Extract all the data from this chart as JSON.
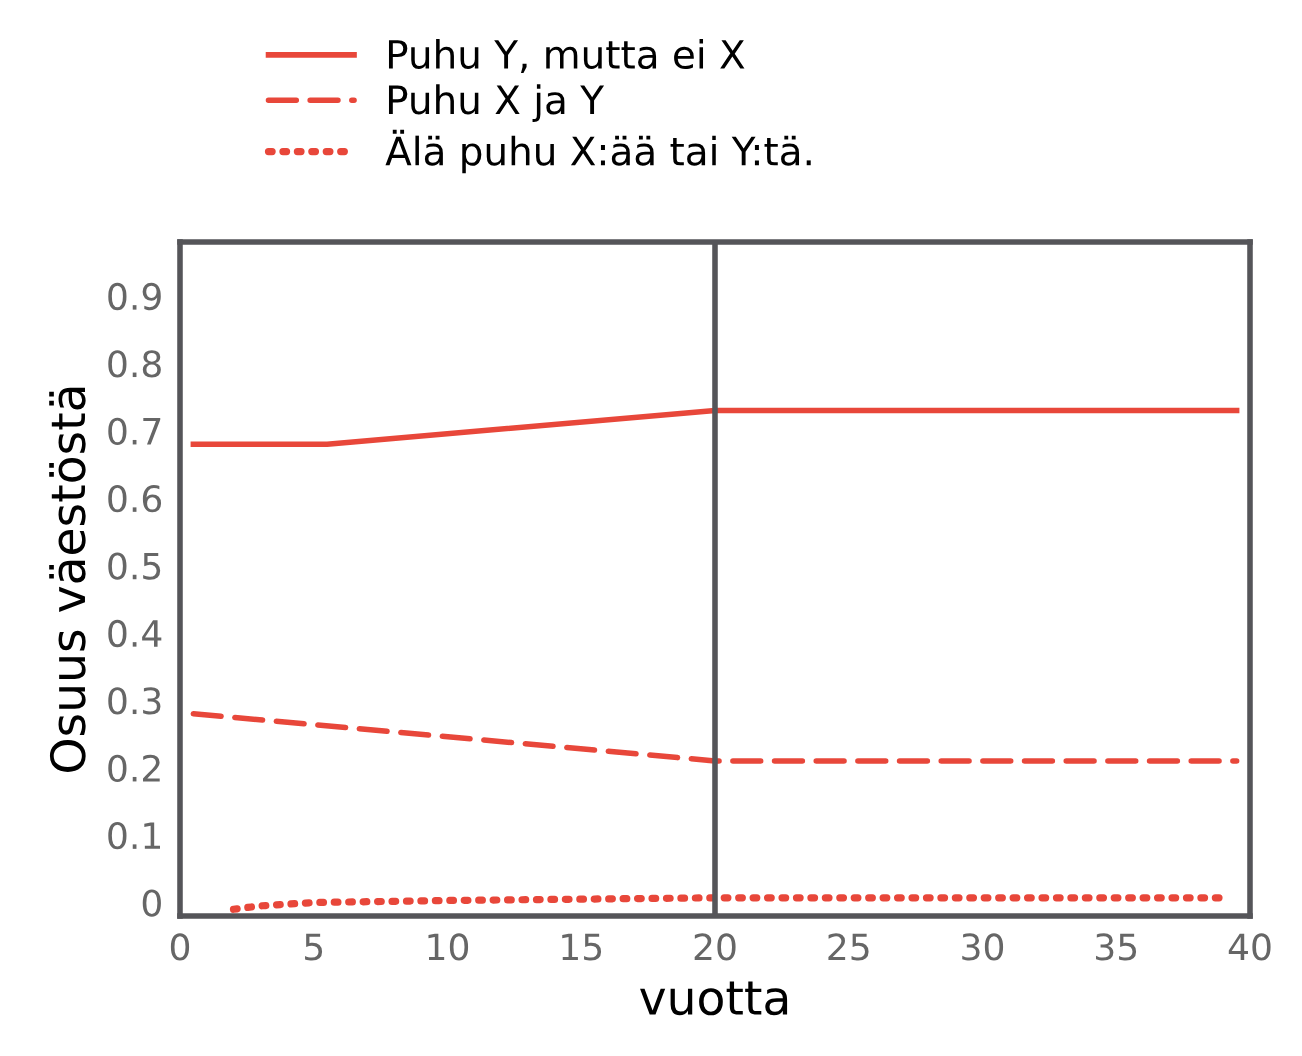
{
  "chart_data": {
    "type": "line",
    "xlabel": "vuotta",
    "ylabel": "Osuus väestöstä",
    "xlim": [
      0,
      40
    ],
    "xticks": [
      0,
      5,
      10,
      15,
      20,
      25,
      30,
      35,
      40
    ],
    "ylim": [
      -0.02,
      0.98
    ],
    "yticks": [
      0,
      0.1,
      0.2,
      0.3,
      0.4,
      0.5,
      0.6,
      0.7,
      0.8,
      0.9
    ],
    "grid": false,
    "legend": "top left",
    "ref_lines": [
      {
        "axis": "x",
        "value": 20,
        "color": "#555559"
      }
    ],
    "series": [
      {
        "name": "Puhu Y, mutta ei X",
        "color": "#e8473a",
        "line_style": "solid",
        "x": [
          0.5,
          5.5,
          20,
          39.5
        ],
        "values": [
          0.68,
          0.68,
          0.73,
          0.73
        ]
      },
      {
        "name": "Puhu X ja Y",
        "color": "#e8473a",
        "line_style": "dashed",
        "x": [
          0.5,
          20,
          39.5
        ],
        "values": [
          0.28,
          0.21,
          0.21
        ]
      },
      {
        "name": "Älä puhu X:ää tai Y:tä.",
        "color": "#e8473a",
        "line_style": "dotted",
        "x": [
          2,
          3,
          5,
          10,
          20,
          39
        ],
        "values": [
          -0.01,
          -0.005,
          0.0,
          0.003,
          0.007,
          0.007
        ]
      }
    ]
  }
}
